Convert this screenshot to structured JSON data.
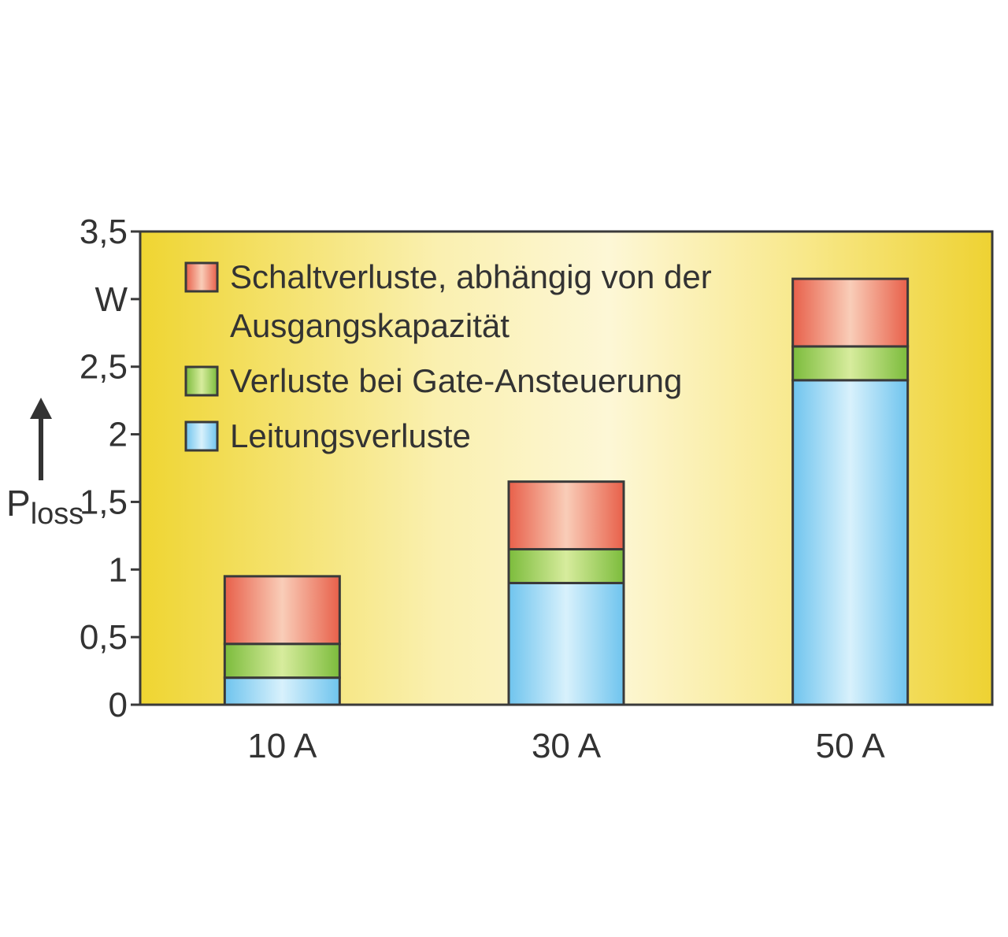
{
  "chart_data": {
    "type": "bar",
    "stacked": true,
    "categories": [
      "10 A",
      "30 A",
      "50 A"
    ],
    "series": [
      {
        "name": "Leitungsverluste",
        "values": [
          0.2,
          0.9,
          2.4
        ],
        "color": "#a8dcf4"
      },
      {
        "name": "Verluste bei Gate-Ansteuerung",
        "values": [
          0.25,
          0.25,
          0.25
        ],
        "color": "#9ccc5a"
      },
      {
        "name": "Schaltverluste, abhängig von der Ausgangskapazität",
        "values": [
          0.5,
          0.5,
          0.5
        ],
        "color": "#ec7a66"
      }
    ],
    "legend_order": [
      2,
      1,
      0
    ],
    "legend_lines": [
      [
        "Schaltverluste, abhängig von der",
        "Ausgangskapazität"
      ],
      [
        "Verluste bei Gate-Ansteuerung"
      ],
      [
        "Leitungsverluste"
      ]
    ],
    "yticks": [
      "0",
      "0,5",
      "1",
      "1,5",
      "2",
      "2,5",
      "W",
      "3,5"
    ],
    "ylim": [
      0,
      3.5
    ],
    "ylabel_main": "P",
    "ylabel_sub": "loss",
    "legend_position": "top-left",
    "background": "yellow radial gradient",
    "grid": false
  }
}
